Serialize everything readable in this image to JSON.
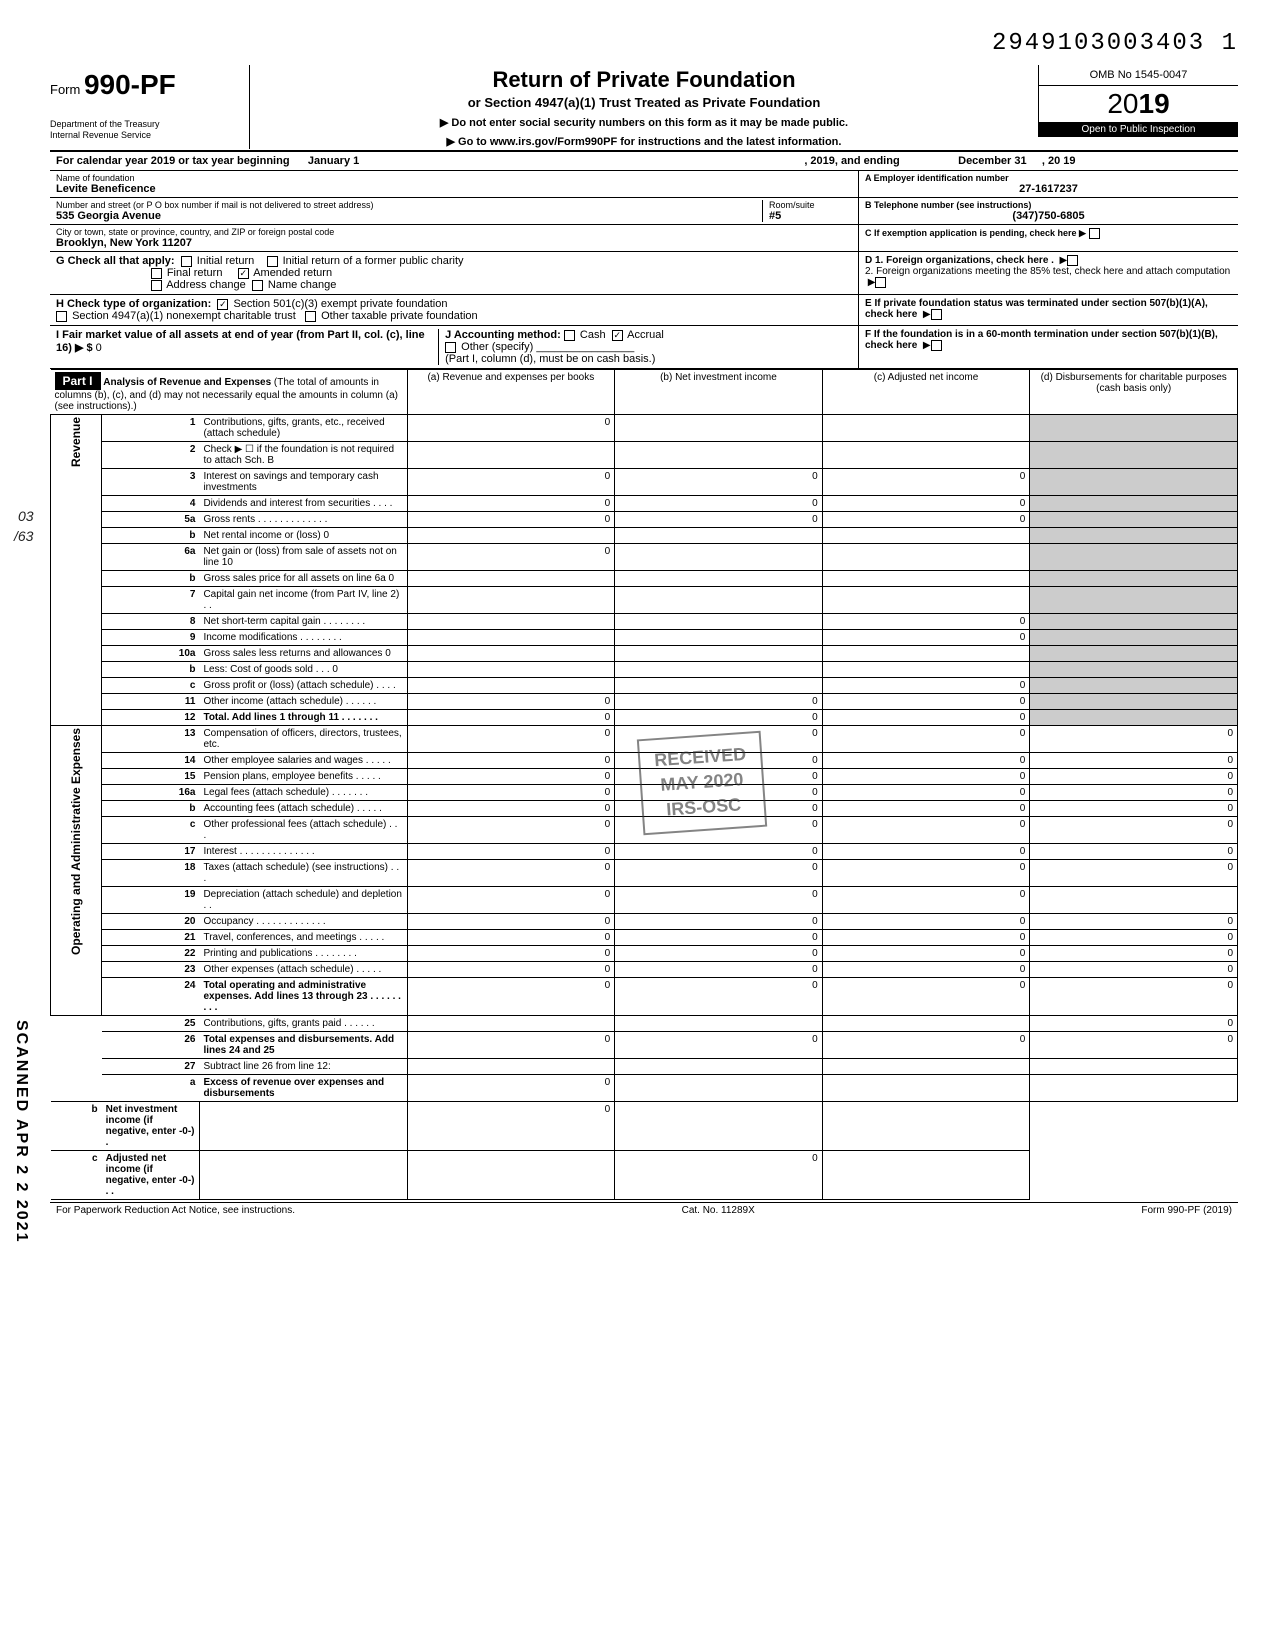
{
  "top_id": "2949103003403  1",
  "header": {
    "form_prefix": "Form",
    "form_number": "990-PF",
    "dept1": "Department of the Treasury",
    "dept2": "Internal Revenue Service",
    "title": "Return of Private Foundation",
    "subtitle": "or Section 4947(a)(1) Trust Treated as Private Foundation",
    "line1": "▶ Do not enter social security numbers on this form as it may be made public.",
    "line2": "▶ Go to www.irs.gov/Form990PF for instructions and the latest information.",
    "omb": "OMB No 1545-0047",
    "year_outline": "20",
    "year_bold": "19",
    "open": "Open to Public Inspection"
  },
  "cal_year": {
    "prefix": "For calendar year 2019 or tax year beginning",
    "begin": "January 1",
    "mid": ", 2019, and ending",
    "end": "December 31",
    "yr": ", 20   19"
  },
  "foundation": {
    "name_label": "Name of foundation",
    "name": "Levite Beneficence",
    "addr_label": "Number and street (or P O  box number if mail is not delivered to street address)",
    "addr": "535 Georgia Avenue",
    "room_label": "Room/suite",
    "room": "#5",
    "city_label": "City or town, state or province, country, and ZIP or foreign postal code",
    "city": "Brooklyn, New York 11207",
    "ein_label": "A  Employer identification number",
    "ein": "27-1617237",
    "phone_label": "B  Telephone number (see instructions)",
    "phone": "(347)750-6805",
    "c_label": "C  If exemption application is pending, check here ▶"
  },
  "checks": {
    "G_label": "G  Check all that apply:",
    "g1": "Initial return",
    "g2": "Initial return of a former public charity",
    "g3": "Final return",
    "g4": "Amended return",
    "g5": "Address change",
    "g6": "Name change",
    "H_label": "H  Check type of organization:",
    "h1": "Section 501(c)(3) exempt private foundation",
    "h2": "Section 4947(a)(1) nonexempt charitable trust",
    "h3": "Other taxable private foundation",
    "I_label": "I   Fair market value of all assets at end of year (from Part II, col. (c), line 16) ▶ $",
    "I_val": "0",
    "J_label": "J  Accounting method:",
    "j1": "Cash",
    "j2": "Accrual",
    "j3": "Other (specify)",
    "j_note": "(Part I, column (d), must be on cash basis.)",
    "D1": "D  1. Foreign organizations, check here .",
    "D2": "2. Foreign organizations meeting the 85% test, check here and attach computation",
    "E": "E  If private foundation status was terminated under section 507(b)(1)(A), check here",
    "F": "F  If the foundation is in a 60-month termination under section 507(b)(1)(B), check here"
  },
  "part1": {
    "label": "Part I",
    "title": "Analysis of Revenue and Expenses",
    "title_note": "(The total of amounts in columns (b), (c), and (d) may not necessarily equal the amounts in column (a) (see instructions).)",
    "col_a": "(a) Revenue and expenses per books",
    "col_b": "(b) Net investment income",
    "col_c": "(c) Adjusted net income",
    "col_d": "(d) Disbursements for charitable purposes (cash basis only)"
  },
  "side_labels": {
    "rev": "Revenue",
    "exp": "Operating and Administrative Expenses"
  },
  "rows": [
    {
      "n": "1",
      "desc": "Contributions, gifts, grants, etc., received (attach schedule)",
      "a": "0"
    },
    {
      "n": "2",
      "desc": "Check ▶ ☐ if the foundation is not required to attach Sch. B"
    },
    {
      "n": "3",
      "desc": "Interest on savings and temporary cash investments",
      "a": "0",
      "b": "0",
      "c": "0"
    },
    {
      "n": "4",
      "desc": "Dividends and interest from securities   .   .   .   .",
      "a": "0",
      "b": "0",
      "c": "0"
    },
    {
      "n": "5a",
      "desc": "Gross rents  .   .   .   .   .   .   .   .   .   .   .   .   .",
      "a": "0",
      "b": "0",
      "c": "0"
    },
    {
      "n": "b",
      "desc": "Net rental income or (loss)                                    0"
    },
    {
      "n": "6a",
      "desc": "Net gain or (loss) from sale of assets not on line 10",
      "a": "0"
    },
    {
      "n": "b",
      "desc": "Gross sales price for all assets on line 6a                  0"
    },
    {
      "n": "7",
      "desc": "Capital gain net income (from Part IV, line 2)   .   .",
      "b": ""
    },
    {
      "n": "8",
      "desc": "Net short-term capital gain  .   .   .   .   .   .   .   .",
      "c": "0"
    },
    {
      "n": "9",
      "desc": "Income modifications       .   .   .   .   .   .   .   .",
      "c": "0"
    },
    {
      "n": "10a",
      "desc": "Gross sales less returns and allowances              0"
    },
    {
      "n": "b",
      "desc": "Less: Cost of goods sold    .   .   .                      0"
    },
    {
      "n": "c",
      "desc": "Gross profit or (loss) (attach schedule)  .   .   .   .",
      "c": "0"
    },
    {
      "n": "11",
      "desc": "Other income (attach schedule)    .   .   .   .   .   .",
      "a": "0",
      "b": "0",
      "c": "0"
    },
    {
      "n": "12",
      "desc": "Total. Add lines 1 through 11  .   .   .   .   .   .   .",
      "bold": true,
      "a": "0",
      "b": "0",
      "c": "0"
    },
    {
      "n": "13",
      "desc": "Compensation of officers, directors, trustees, etc.",
      "a": "0",
      "b": "0",
      "c": "0",
      "d": "0"
    },
    {
      "n": "14",
      "desc": "Other employee salaries and wages .   .   .   .   .",
      "a": "0",
      "b": "0",
      "c": "0",
      "d": "0"
    },
    {
      "n": "15",
      "desc": "Pension plans, employee benefits    .   .   .   .   .",
      "a": "0",
      "b": "0",
      "c": "0",
      "d": "0"
    },
    {
      "n": "16a",
      "desc": "Legal fees (attach schedule)    .   .   .   .   .   .   .",
      "a": "0",
      "b": "0",
      "c": "0",
      "d": "0"
    },
    {
      "n": "b",
      "desc": "Accounting fees (attach schedule)   .   .   .   .   .",
      "a": "0",
      "b": "0",
      "c": "0",
      "d": "0"
    },
    {
      "n": "c",
      "desc": "Other professional fees (attach schedule)  .   .   .",
      "a": "0",
      "b": "0",
      "c": "0",
      "d": "0"
    },
    {
      "n": "17",
      "desc": "Interest    .   .   .   .   .   .   .   .   .   .   .   .   .   .",
      "a": "0",
      "b": "0",
      "c": "0",
      "d": "0"
    },
    {
      "n": "18",
      "desc": "Taxes (attach schedule) (see instructions)  .   .   .",
      "a": "0",
      "b": "0",
      "c": "0",
      "d": "0"
    },
    {
      "n": "19",
      "desc": "Depreciation (attach schedule) and depletion  .   .",
      "a": "0",
      "b": "0",
      "c": "0"
    },
    {
      "n": "20",
      "desc": "Occupancy .   .   .   .   .   .   .   .   .   .   .   .   .",
      "a": "0",
      "b": "0",
      "c": "0",
      "d": "0"
    },
    {
      "n": "21",
      "desc": "Travel, conferences, and meetings   .   .   .   .   .",
      "a": "0",
      "b": "0",
      "c": "0",
      "d": "0"
    },
    {
      "n": "22",
      "desc": "Printing and publications    .   .   .   .   .   .   .   .",
      "a": "0",
      "b": "0",
      "c": "0",
      "d": "0"
    },
    {
      "n": "23",
      "desc": "Other expenses (attach schedule)    .   .   .   .   .",
      "a": "0",
      "b": "0",
      "c": "0",
      "d": "0"
    },
    {
      "n": "24",
      "desc": "Total operating and administrative expenses. Add lines 13 through 23 .   .   .   .   .   .   .   .   .",
      "bold": true,
      "a": "0",
      "b": "0",
      "c": "0",
      "d": "0"
    },
    {
      "n": "25",
      "desc": "Contributions, gifts, grants paid    .   .   .   .   .   .",
      "d": "0"
    },
    {
      "n": "26",
      "desc": "Total expenses and disbursements. Add lines 24 and 25",
      "bold": true,
      "a": "0",
      "b": "0",
      "c": "0",
      "d": "0"
    },
    {
      "n": "27",
      "desc": "Subtract line 26 from line 12:"
    },
    {
      "n": "a",
      "desc": "Excess of revenue over expenses and disbursements",
      "bold": true,
      "a": "0"
    },
    {
      "n": "b",
      "desc": "Net investment income (if negative, enter -0-)   .",
      "bold": true,
      "b": "0"
    },
    {
      "n": "c",
      "desc": "Adjusted net income (if negative, enter -0-)   .   .",
      "bold": true,
      "c": "0"
    }
  ],
  "footer": {
    "left": "For Paperwork Reduction Act Notice, see instructions.",
    "mid": "Cat. No. 11289X",
    "right": "Form 990-PF (2019)"
  },
  "stamp": {
    "l1": "RECEIVED",
    "l2": "MAY  2020",
    "l3": "IRS-OSC"
  },
  "side_scan": "SCANNED APR 2 2 2021",
  "annot": {
    "o3": "03",
    "slash63": "/63"
  },
  "colors": {
    "black": "#000000",
    "white": "#ffffff",
    "shade": "#cccccc"
  }
}
